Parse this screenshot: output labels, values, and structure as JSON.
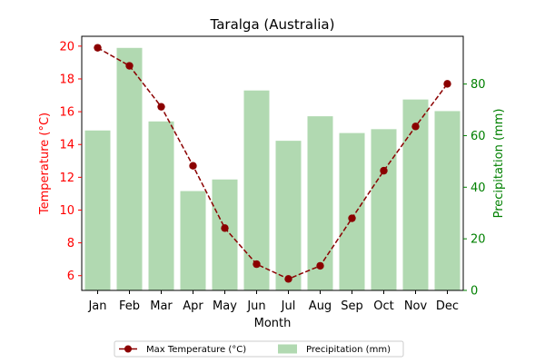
{
  "chart_data": {
    "type": "bar+line",
    "title": "Taralga (Australia)",
    "xlabel": "Month",
    "ylabel_left": "Temperature (°C)",
    "ylabel_right": "Precipitation (mm)",
    "categories": [
      "Jan",
      "Feb",
      "Mar",
      "Apr",
      "May",
      "Jun",
      "Jul",
      "Aug",
      "Sep",
      "Oct",
      "Nov",
      "Dec"
    ],
    "y_left_ticks": [
      "6",
      "8",
      "10",
      "12",
      "14",
      "16",
      "18",
      "20"
    ],
    "y_left_range": [
      5.1,
      20.6
    ],
    "y_right_ticks": [
      "0",
      "20",
      "40",
      "60",
      "80"
    ],
    "y_right_range": [
      0,
      98.5
    ],
    "series": [
      {
        "name": "Max Temperature (°C)",
        "kind": "line",
        "axis": "left",
        "color": "#8b0000",
        "values": [
          19.9,
          18.8,
          16.3,
          12.7,
          8.9,
          6.7,
          5.8,
          6.6,
          9.5,
          12.4,
          15.1,
          17.7
        ]
      },
      {
        "name": "Precipitation (mm)",
        "kind": "bar",
        "axis": "right",
        "color": "#b1d9b1",
        "values": [
          62,
          94,
          65.5,
          38.5,
          43,
          77.5,
          58,
          67.5,
          61,
          62.5,
          74,
          69.5
        ]
      }
    ],
    "left_axis_color": "#ff0000",
    "right_axis_color": "#008000",
    "legend_position": "bottom-center",
    "grid": false
  }
}
